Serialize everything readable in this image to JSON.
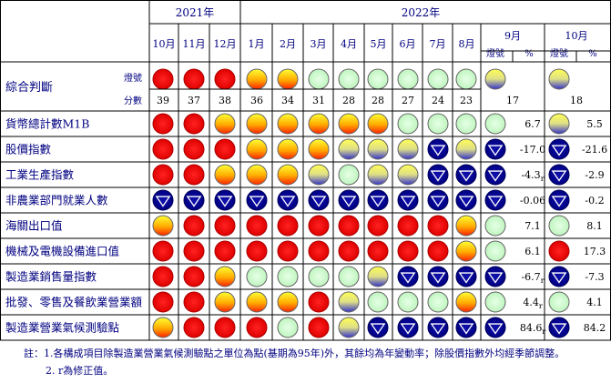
{
  "header": {
    "year_2021": "2021年",
    "year_2022": "2022年",
    "months_2021": [
      "10月",
      "11月",
      "12月"
    ],
    "months_2022_early": [
      "1月",
      "2月",
      "3月",
      "4月",
      "5月",
      "6月",
      "7月",
      "8月"
    ],
    "month_sep": "9月",
    "month_oct": "10月",
    "signal_label": "燈號",
    "pct_label": "%"
  },
  "composite": {
    "label": "綜合判斷",
    "signal_row_label": "燈號",
    "score_row_label": "分數",
    "signals": [
      "red",
      "red",
      "red",
      "yellow-red",
      "yellow-red",
      "green",
      "green",
      "green",
      "green",
      "green",
      "green",
      "yellow-blue",
      "yellow-blue"
    ],
    "scores": [
      "39",
      "37",
      "38",
      "36",
      "34",
      "31",
      "28",
      "28",
      "27",
      "24",
      "23",
      "17",
      "18"
    ]
  },
  "indicators": [
    {
      "name": "貨幣總計數M1B",
      "signals": [
        "red",
        "red",
        "yellow-red",
        "yellow-red",
        "yellow-red",
        "yellow-red",
        "yellow-red",
        "yellow-red",
        "green",
        "green",
        "green",
        "green",
        "yellow-blue"
      ],
      "sep_value": "6.7",
      "sep_rev": "",
      "oct_value": "5.5",
      "oct_rev": ""
    },
    {
      "name": "股價指數",
      "signals": [
        "red",
        "red",
        "red",
        "yellow-red",
        "yellow-red",
        "yellow-red",
        "yellow-blue",
        "yellow-blue",
        "yellow-blue",
        "blue",
        "yellow-blue",
        "blue",
        "blue"
      ],
      "sep_value": "-17.0",
      "sep_rev": "",
      "oct_value": "-21.6",
      "oct_rev": ""
    },
    {
      "name": "工業生產指數",
      "signals": [
        "red",
        "red",
        "yellow-red",
        "yellow-red",
        "yellow-red",
        "yellow-blue",
        "green",
        "yellow-blue",
        "yellow-blue",
        "blue",
        "blue",
        "blue",
        "blue"
      ],
      "sep_value": "-4.3",
      "sep_rev": "r",
      "oct_value": "-2.9",
      "oct_rev": ""
    },
    {
      "name": "非農業部門就業人數",
      "signals": [
        "blue",
        "blue",
        "blue",
        "blue",
        "blue",
        "blue",
        "blue",
        "blue",
        "blue",
        "blue",
        "blue",
        "blue",
        "blue"
      ],
      "sep_value": "-0.06",
      "sep_rev": "",
      "oct_value": "-0.2",
      "oct_rev": ""
    },
    {
      "name": "海關出口值",
      "signals": [
        "yellow-red",
        "red",
        "red",
        "red",
        "red",
        "red",
        "red",
        "red",
        "red",
        "red",
        "yellow-red",
        "green",
        "green"
      ],
      "sep_value": "7.1",
      "sep_rev": "",
      "oct_value": "8.1",
      "oct_rev": ""
    },
    {
      "name": "機械及電機設備進口值",
      "signals": [
        "red",
        "red",
        "red",
        "red",
        "red",
        "red",
        "red",
        "red",
        "red",
        "red",
        "yellow-red",
        "green",
        "red"
      ],
      "sep_value": "6.1",
      "sep_rev": "",
      "oct_value": "17.3",
      "oct_rev": ""
    },
    {
      "name": "製造業銷售量指數",
      "signals": [
        "red",
        "red",
        "yellow-red",
        "green",
        "green",
        "green",
        "green",
        "yellow-blue",
        "blue",
        "blue",
        "blue",
        "blue",
        "blue"
      ],
      "sep_value": "-6.7",
      "sep_rev": "r",
      "oct_value": "-7.3",
      "oct_rev": ""
    },
    {
      "name": "批發、零售及餐飲業營業額",
      "signals": [
        "red",
        "red",
        "yellow-red",
        "yellow-red",
        "yellow-red",
        "red",
        "yellow-blue",
        "green",
        "green",
        "green",
        "yellow-red",
        "green",
        "green"
      ],
      "sep_value": "4.4",
      "sep_rev": "r",
      "oct_value": "4.1",
      "oct_rev": ""
    },
    {
      "name": "製造業營業氣候測驗點",
      "signals": [
        "yellow-red",
        "red",
        "red",
        "red",
        "green",
        "red",
        "yellow-blue",
        "blue",
        "blue",
        "blue",
        "blue",
        "blue",
        "blue"
      ],
      "sep_value": "84.6",
      "sep_rev": "r",
      "oct_value": "84.2",
      "oct_rev": ""
    }
  ],
  "notes": {
    "line1": "註：1.各構成項目除製造業營業氣候測驗點之單位為點(基期為95年)外，其餘均為年變動率；除股價指數外均經季節調整。",
    "line2": "2. r為修正值。"
  },
  "colors": {
    "red": "#ff0000",
    "yellow_red": "#ff9900",
    "yellow": "#ffff00",
    "green": "#ccffcc",
    "blue": "#000099",
    "yellow_blue_top": "#ffff66",
    "yellow_blue_bottom": "#6666ff",
    "text_navy": "#000080",
    "grid": "#000000"
  }
}
